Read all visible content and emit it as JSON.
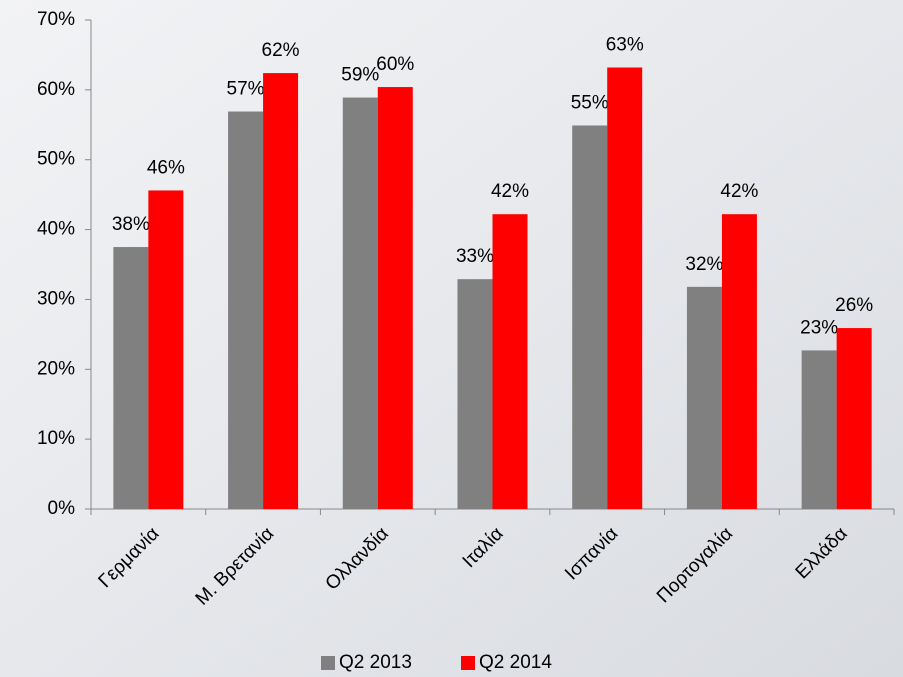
{
  "chart_data": {
    "type": "bar",
    "categories": [
      "Γερμανία",
      "Μ. Βρετανία",
      "Ολλανδία",
      "Ιταλία",
      "Ισπανία",
      "Πορτογαλία",
      "Ελλάδα"
    ],
    "series": [
      {
        "name": "Q2 2013",
        "color": "#808080",
        "values": [
          37.5,
          56.9,
          58.9,
          32.9,
          54.9,
          31.8,
          22.7
        ],
        "value_labels": [
          "38%",
          "57%",
          "59%",
          "33%",
          "55%",
          "32%",
          "23%"
        ]
      },
      {
        "name": "Q2 2014",
        "color": "#ff0000",
        "values": [
          45.6,
          62.4,
          60.4,
          42.2,
          63.2,
          42.2,
          25.9
        ],
        "value_labels": [
          "46%",
          "62%",
          "60%",
          "42%",
          "63%",
          "42%",
          "26%"
        ]
      }
    ],
    "ylim": [
      0,
      70
    ],
    "yticks": [
      {
        "value": 0,
        "label": "0%"
      },
      {
        "value": 10,
        "label": "10%"
      },
      {
        "value": 20,
        "label": "20%"
      },
      {
        "value": 30,
        "label": "30%"
      },
      {
        "value": 40,
        "label": "40%"
      },
      {
        "value": 50,
        "label": "50%"
      },
      {
        "value": 60,
        "label": "60%"
      },
      {
        "value": 70,
        "label": "70%"
      }
    ],
    "legend": "bottom"
  }
}
